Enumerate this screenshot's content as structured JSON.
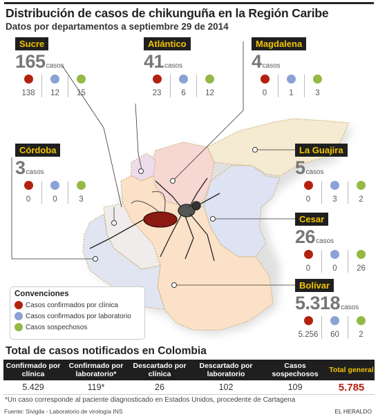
{
  "title": "Distribución de casos de chikunguña en la Región Caribe",
  "subtitle": "Datos por departamentos a septiembre 29 de 2014",
  "unit_label": "casos",
  "legend": {
    "title": "Convenciones",
    "items": [
      {
        "label": "Casos confirmados por clínica",
        "color": "#b3210f"
      },
      {
        "label": "Casos confirmados por laboratorio",
        "color": "#8aa2d6"
      },
      {
        "label": "Casos sospechosos",
        "color": "#94b945"
      }
    ]
  },
  "departments": [
    {
      "name": "Sucre",
      "total": "165",
      "clinica": "138",
      "laboratorio": "12",
      "sospechosos": "15"
    },
    {
      "name": "Atlántico",
      "total": "41",
      "clinica": "23",
      "laboratorio": "6",
      "sospechosos": "12"
    },
    {
      "name": "Magdalena",
      "total": "4",
      "clinica": "0",
      "laboratorio": "1",
      "sospechosos": "3"
    },
    {
      "name": "Córdoba",
      "total": "3",
      "clinica": "0",
      "laboratorio": "0",
      "sospechosos": "3"
    },
    {
      "name": "La Guajira",
      "total": "5",
      "clinica": "0",
      "laboratorio": "3",
      "sospechosos": "2"
    },
    {
      "name": "Cesar",
      "total": "26",
      "clinica": "0",
      "laboratorio": "0",
      "sospechosos": "26"
    },
    {
      "name": "Bolívar",
      "total": "5.318",
      "clinica": "5.256",
      "laboratorio": "60",
      "sospechosos": "2"
    }
  ],
  "colombia_table": {
    "title": "Total de casos notificados en Colombia",
    "headers": [
      "Confirmado por clínica",
      "Confirmado por laboratorio*",
      "Descartado por clínica",
      "Descartado por laboratorio",
      "Casos sospechosos",
      "Total general"
    ],
    "values": [
      "5.429",
      "119*",
      "26",
      "102",
      "109",
      "5.785"
    ]
  },
  "note": "*Un caso corresponde al paciente diagnosticado en Estados Unidos, procedente de Cartagena",
  "source": "Fuente: Sivigila - Laboratorio de virología INS",
  "brand": "EL HERALDO",
  "colors": {
    "badge_bg": "#1f1f1f",
    "badge_text": "#f2c400",
    "accent_red": "#b3210f"
  }
}
